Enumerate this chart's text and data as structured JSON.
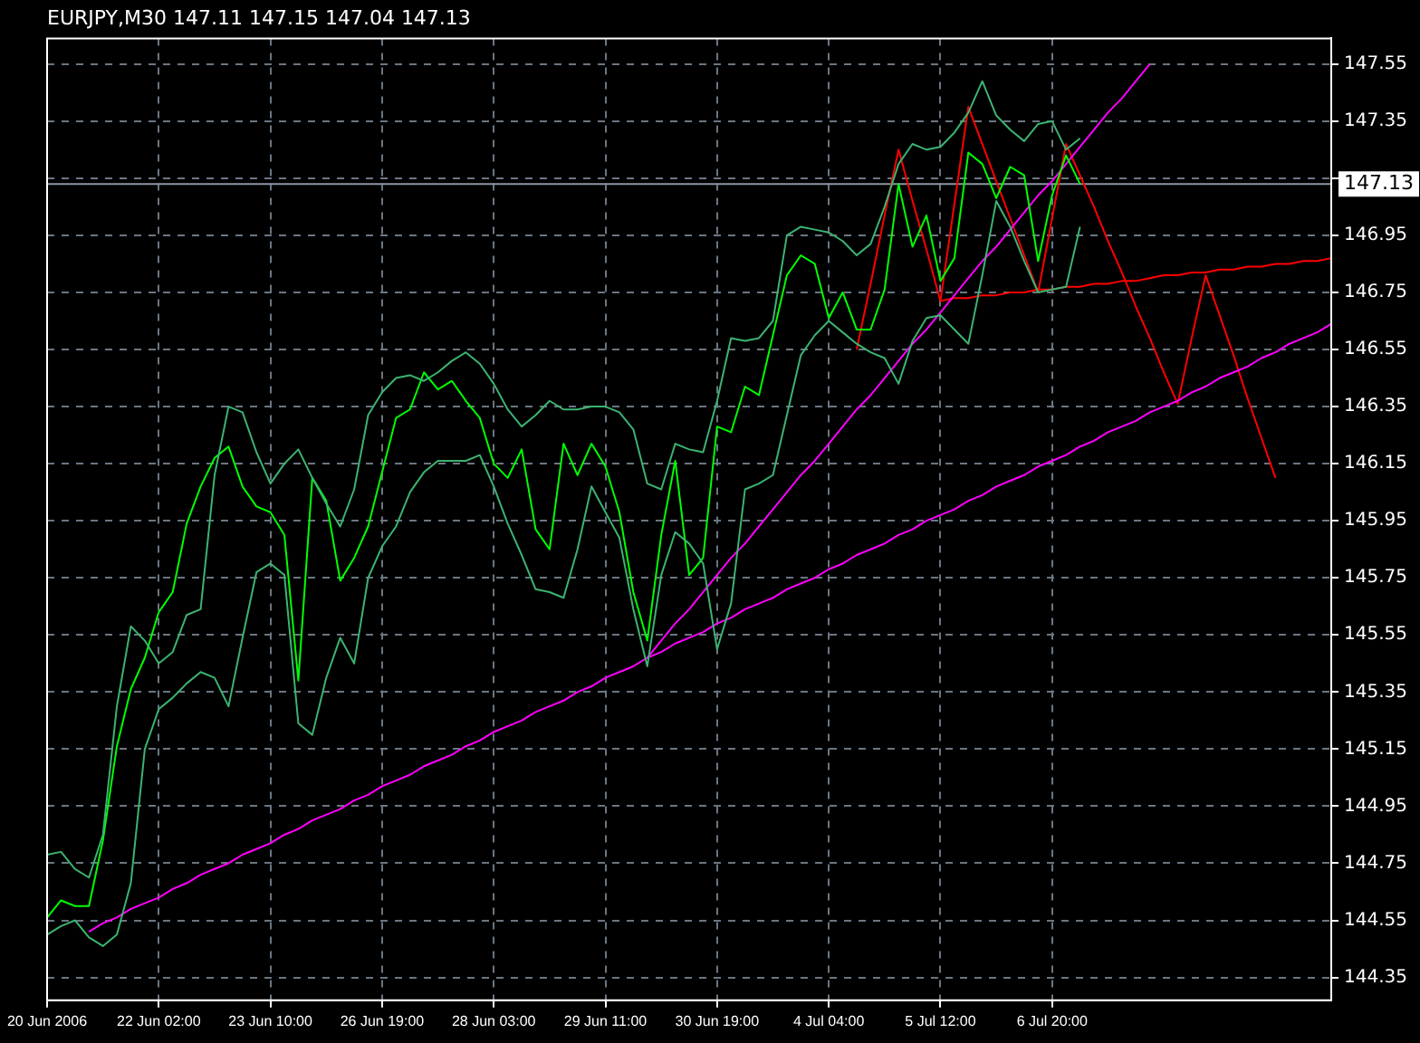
{
  "chart_data": {
    "type": "line",
    "title": "EURJPY,M30 147.11 147.15 147.04 147.13",
    "ylim": [
      144.27,
      147.64
    ],
    "categories": [
      "20 Jun 2006",
      null,
      null,
      null,
      null,
      null,
      null,
      null,
      "22 Jun 02:00",
      null,
      null,
      null,
      null,
      null,
      null,
      null,
      "23 Jun 10:00",
      null,
      null,
      null,
      null,
      null,
      null,
      null,
      "26 Jun 19:00",
      null,
      null,
      null,
      null,
      null,
      null,
      null,
      "28 Jun 03:00",
      null,
      null,
      null,
      null,
      null,
      null,
      null,
      "29 Jun 11:00",
      null,
      null,
      null,
      null,
      null,
      null,
      null,
      "30 Jun 19:00",
      null,
      null,
      null,
      null,
      null,
      null,
      null,
      "4 Jul 04:00",
      null,
      null,
      null,
      null,
      null,
      null,
      null,
      "5 Jul 12:00",
      null,
      null,
      null,
      null,
      null,
      null,
      null,
      "6 Jul 20:00",
      null,
      null,
      null,
      null,
      null,
      null,
      null,
      null,
      null,
      null,
      null,
      null,
      null,
      null,
      null,
      null,
      null,
      null,
      null,
      null
    ],
    "yticks": [
      144.35,
      144.55,
      144.75,
      144.95,
      145.15,
      145.35,
      145.55,
      145.75,
      145.95,
      146.15,
      146.35,
      146.55,
      146.75,
      146.95,
      {
        "value": 147.15,
        "label": null
      },
      147.35,
      147.55
    ],
    "grid": true,
    "legend": false,
    "marker": "none",
    "series": [
      {
        "color": "#3cb371",
        "values": [
          144.78,
          144.79,
          144.73,
          144.7,
          144.85,
          145.3,
          145.58,
          145.53,
          145.45,
          145.49,
          145.62,
          145.64,
          146.11,
          146.35,
          146.33,
          146.19,
          146.08,
          146.15,
          146.2,
          146.1,
          146.01,
          145.93,
          146.06,
          146.32,
          146.4,
          146.45,
          146.46,
          146.44,
          146.47,
          146.51,
          146.54,
          146.5,
          146.43,
          146.34,
          146.28,
          146.32,
          146.37,
          146.34,
          146.34,
          146.35,
          146.35,
          146.33,
          146.27,
          146.08,
          146.06,
          146.22,
          146.2,
          146.19,
          146.37,
          146.59,
          146.58,
          146.59,
          146.65,
          146.95,
          146.98,
          146.97,
          146.96,
          146.93,
          146.88,
          146.92,
          147.05,
          147.2,
          147.27,
          147.25,
          147.26,
          147.31,
          147.38,
          147.49,
          147.37,
          147.32,
          147.28,
          147.34,
          147.35,
          147.25,
          147.29,
          null,
          null,
          null,
          null,
          null,
          null,
          null,
          null,
          null,
          null,
          null,
          null,
          null,
          null,
          null,
          null,
          null,
          null
        ]
      },
      {
        "color": "#3cb371",
        "values": [
          144.5,
          144.53,
          144.55,
          144.49,
          144.46,
          144.5,
          144.68,
          145.15,
          145.29,
          145.33,
          145.38,
          145.42,
          145.4,
          145.3,
          145.54,
          145.77,
          145.8,
          145.76,
          145.24,
          145.2,
          145.4,
          145.54,
          145.45,
          145.75,
          145.86,
          145.93,
          146.05,
          146.12,
          146.16,
          146.16,
          146.16,
          146.18,
          146.07,
          145.94,
          145.83,
          145.71,
          145.7,
          145.68,
          145.85,
          146.07,
          145.98,
          145.89,
          145.64,
          145.44,
          145.76,
          145.91,
          145.87,
          145.8,
          145.5,
          145.66,
          146.06,
          146.08,
          146.11,
          146.32,
          146.53,
          146.6,
          146.65,
          146.61,
          146.57,
          146.54,
          146.52,
          146.43,
          146.58,
          146.66,
          146.67,
          146.62,
          146.57,
          146.81,
          147.07,
          146.98,
          146.86,
          146.75,
          146.76,
          146.77,
          146.98,
          null,
          null,
          null,
          null,
          null,
          null,
          null,
          null,
          null,
          null,
          null,
          null,
          null,
          null,
          null,
          null,
          null,
          null
        ]
      },
      {
        "color": "#00ff00",
        "values": [
          144.56,
          144.62,
          144.6,
          144.6,
          144.83,
          145.16,
          145.36,
          145.47,
          145.63,
          145.7,
          145.94,
          146.07,
          146.17,
          146.21,
          146.07,
          146.0,
          145.98,
          145.9,
          145.39,
          146.1,
          146.02,
          145.74,
          145.82,
          145.93,
          146.12,
          146.31,
          146.34,
          146.47,
          146.41,
          146.44,
          146.37,
          146.31,
          146.15,
          146.1,
          146.2,
          145.92,
          145.85,
          146.22,
          146.11,
          146.22,
          146.14,
          145.98,
          145.7,
          145.53,
          145.9,
          146.16,
          145.76,
          145.82,
          146.28,
          146.26,
          146.42,
          146.39,
          146.6,
          146.81,
          146.88,
          146.85,
          146.66,
          146.75,
          146.62,
          146.62,
          146.76,
          147.13,
          146.91,
          147.02,
          146.79,
          146.87,
          147.24,
          147.2,
          147.08,
          147.19,
          147.16,
          146.86,
          147.09,
          147.23,
          147.13,
          null,
          null,
          null,
          null,
          null,
          null,
          null,
          null,
          null,
          null,
          null,
          null,
          null,
          null,
          null,
          null,
          null,
          null
        ]
      },
      {
        "color": "#ff00ff",
        "values": [
          null,
          null,
          null,
          144.51,
          144.54,
          144.56,
          144.59,
          144.61,
          144.63,
          144.66,
          144.68,
          144.71,
          144.73,
          144.75,
          144.78,
          144.8,
          144.82,
          144.85,
          144.87,
          144.9,
          144.92,
          144.94,
          144.97,
          144.99,
          145.02,
          145.04,
          145.06,
          145.09,
          145.11,
          145.13,
          145.16,
          145.18,
          145.21,
          145.23,
          145.25,
          145.28,
          145.3,
          145.32,
          145.35,
          145.37,
          145.4,
          145.42,
          145.44,
          145.47,
          145.49,
          145.52,
          145.54,
          145.56,
          145.59,
          145.61,
          145.64,
          145.66,
          145.68,
          145.71,
          145.73,
          145.75,
          145.78,
          145.8,
          145.83,
          145.85,
          145.87,
          145.9,
          145.92,
          145.95,
          145.97,
          145.99,
          146.02,
          146.04,
          146.07,
          146.09,
          146.11,
          146.14,
          146.16,
          146.18,
          146.21,
          146.23,
          146.26,
          146.28,
          146.3,
          146.33,
          146.35,
          146.37,
          146.4,
          146.42,
          146.45,
          146.47,
          146.49,
          146.52,
          146.54,
          146.57,
          146.59,
          146.61,
          146.64
        ]
      },
      {
        "color": "#ff00ff",
        "values": [
          null,
          null,
          null,
          null,
          null,
          null,
          null,
          null,
          null,
          null,
          null,
          null,
          null,
          null,
          null,
          null,
          null,
          null,
          null,
          null,
          null,
          null,
          null,
          null,
          null,
          null,
          null,
          null,
          null,
          null,
          null,
          null,
          null,
          null,
          null,
          null,
          null,
          null,
          null,
          null,
          null,
          null,
          null,
          145.47,
          145.53,
          145.59,
          145.64,
          145.7,
          145.76,
          145.82,
          145.87,
          145.93,
          145.99,
          146.05,
          146.11,
          146.16,
          146.22,
          146.28,
          146.34,
          146.39,
          146.45,
          146.51,
          146.57,
          146.62,
          146.68,
          146.74,
          146.8,
          146.86,
          146.91,
          146.97,
          147.03,
          147.09,
          147.14,
          147.2,
          147.26,
          147.32,
          147.38,
          147.43,
          147.49,
          147.55,
          null,
          null,
          null,
          null,
          null,
          null,
          null,
          null,
          null,
          null,
          null,
          null,
          null
        ]
      },
      {
        "color": "#ff0000",
        "values": [
          null,
          null,
          null,
          null,
          null,
          null,
          null,
          null,
          null,
          null,
          null,
          null,
          null,
          null,
          null,
          null,
          null,
          null,
          null,
          null,
          null,
          null,
          null,
          null,
          null,
          null,
          null,
          null,
          null,
          null,
          null,
          null,
          null,
          null,
          null,
          null,
          null,
          null,
          null,
          null,
          null,
          null,
          null,
          null,
          null,
          null,
          null,
          null,
          null,
          null,
          null,
          null,
          null,
          null,
          null,
          null,
          null,
          null,
          146.55,
          146.78,
          147.02,
          147.25,
          147.07,
          146.9,
          146.72,
          147.06,
          147.4,
          147.27,
          147.14,
          147.01,
          146.88,
          146.75,
          147.01,
          147.27,
          147.16,
          147.05,
          146.93,
          146.82,
          146.7,
          146.59,
          146.47,
          146.36,
          146.59,
          146.81,
          146.67,
          146.53,
          146.38,
          146.24,
          146.1,
          null,
          null,
          null,
          null
        ]
      },
      {
        "color": "#ff0000",
        "values": [
          null,
          null,
          null,
          null,
          null,
          null,
          null,
          null,
          null,
          null,
          null,
          null,
          null,
          null,
          null,
          null,
          null,
          null,
          null,
          null,
          null,
          null,
          null,
          null,
          null,
          null,
          null,
          null,
          null,
          null,
          null,
          null,
          null,
          null,
          null,
          null,
          null,
          null,
          null,
          null,
          null,
          null,
          null,
          null,
          null,
          null,
          null,
          null,
          null,
          null,
          null,
          null,
          null,
          null,
          null,
          null,
          null,
          null,
          null,
          null,
          null,
          null,
          null,
          null,
          146.72,
          146.73,
          146.73,
          146.74,
          146.74,
          146.75,
          146.75,
          146.76,
          146.76,
          146.77,
          146.77,
          146.78,
          146.78,
          146.79,
          146.79,
          146.8,
          146.81,
          146.81,
          146.82,
          146.82,
          146.83,
          146.83,
          146.84,
          146.84,
          146.85,
          146.85,
          146.86,
          146.86,
          146.87
        ]
      }
    ],
    "ref_lines": [
      {
        "axis": "y",
        "value": 147.13,
        "label": "147.13",
        "color": "#8a96a3",
        "line_style": "solid"
      }
    ]
  }
}
